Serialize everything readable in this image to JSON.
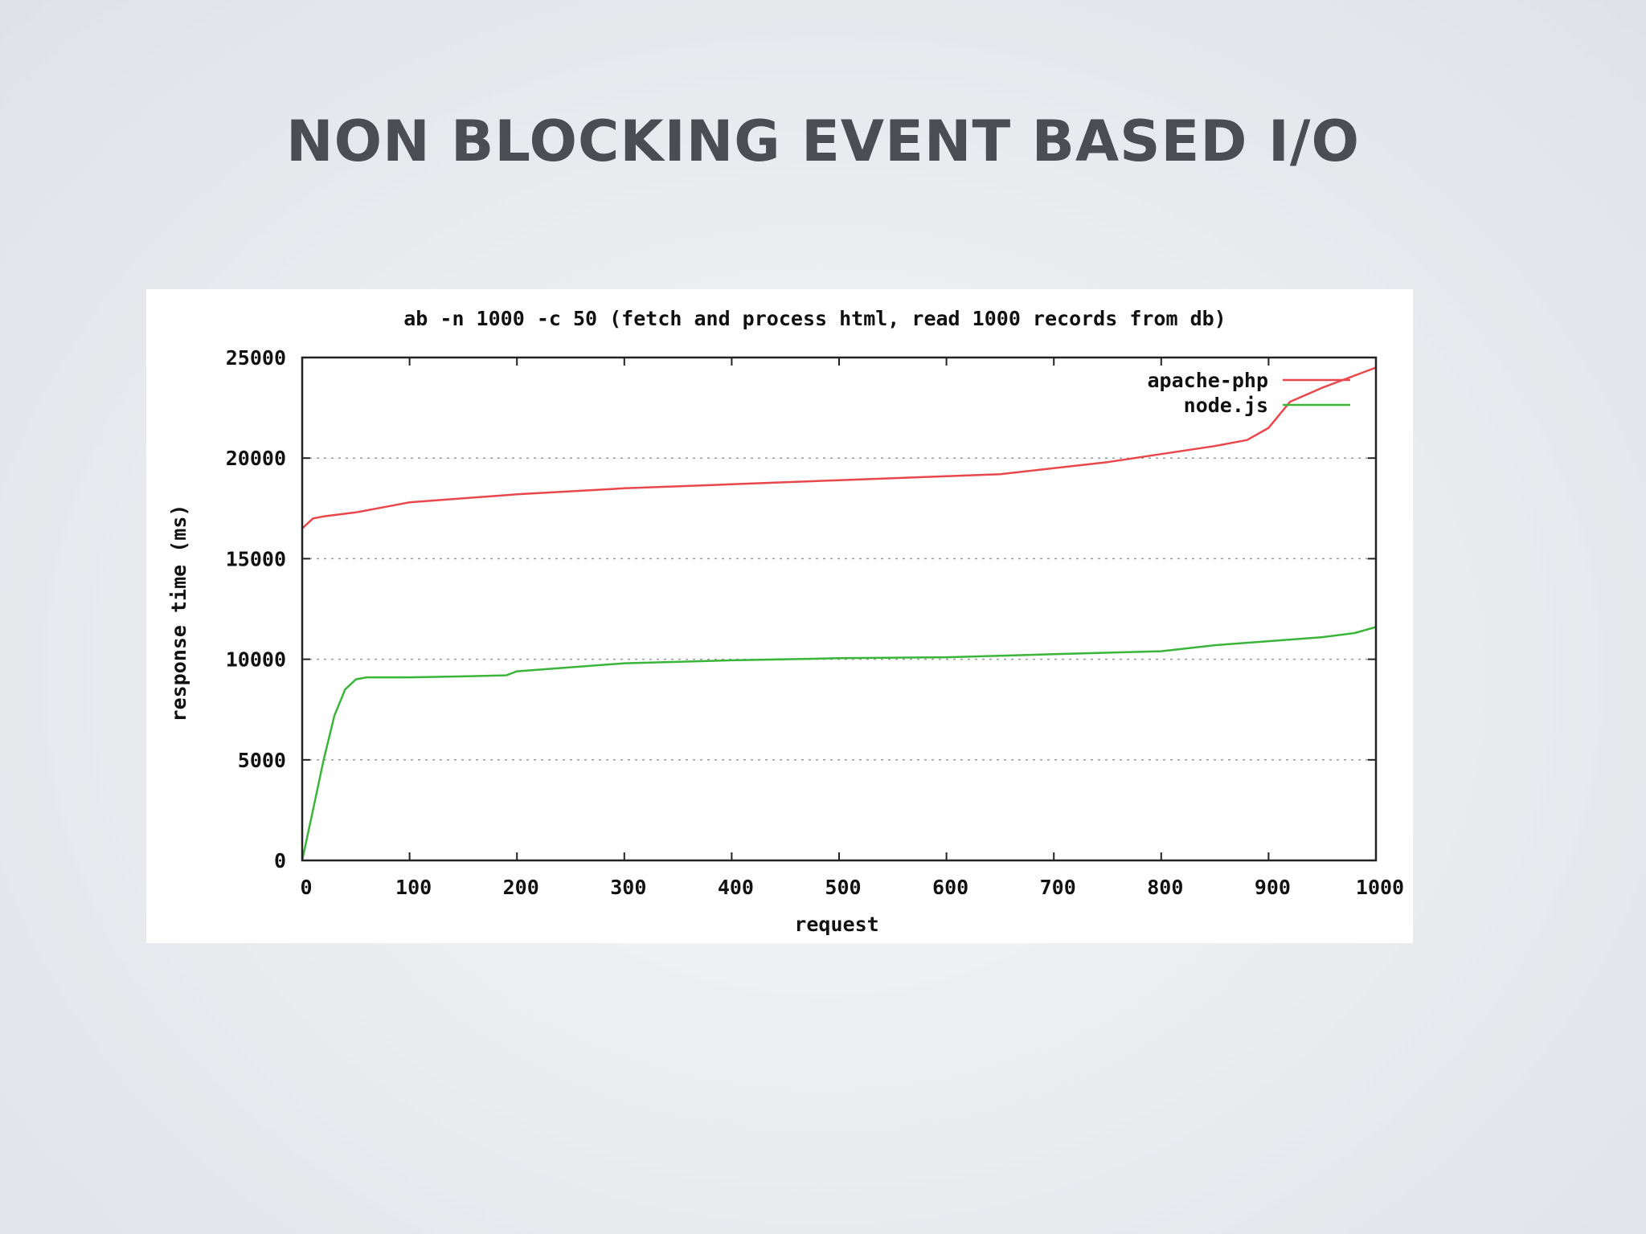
{
  "slide": {
    "title": "NON BLOCKING EVENT BASED I/O"
  },
  "chart_data": {
    "type": "line",
    "title": "ab -n 1000 -c 50 (fetch and process html, read 1000 records from db)",
    "xlabel": "request",
    "ylabel": "response time (ms)",
    "xlim": [
      0,
      1000
    ],
    "ylim": [
      0,
      25000
    ],
    "xticks": [
      0,
      100,
      200,
      300,
      400,
      500,
      600,
      700,
      800,
      900,
      1000
    ],
    "yticks": [
      0,
      5000,
      10000,
      15000,
      20000,
      25000
    ],
    "grid": "horizontal dotted",
    "legend_position": "top-right",
    "series": [
      {
        "name": "apache-php",
        "color": "#e8474c",
        "x": [
          0,
          10,
          20,
          50,
          70,
          100,
          150,
          200,
          300,
          400,
          500,
          600,
          650,
          700,
          750,
          800,
          850,
          880,
          900,
          920,
          950,
          1000
        ],
        "y": [
          16500,
          17000,
          17100,
          17300,
          17500,
          17800,
          18000,
          18200,
          18500,
          18700,
          18900,
          19100,
          19200,
          19500,
          19800,
          20200,
          20600,
          20900,
          21500,
          22800,
          23500,
          24500
        ]
      },
      {
        "name": "node.js",
        "color": "#3ab53a",
        "x": [
          0,
          10,
          20,
          30,
          40,
          50,
          60,
          100,
          150,
          190,
          200,
          300,
          400,
          500,
          600,
          700,
          800,
          850,
          900,
          950,
          980,
          1000
        ],
        "y": [
          0,
          2500,
          5000,
          7200,
          8500,
          9000,
          9100,
          9100,
          9150,
          9200,
          9400,
          9800,
          9950,
          10050,
          10100,
          10250,
          10400,
          10700,
          10900,
          11100,
          11300,
          11600
        ]
      }
    ]
  }
}
